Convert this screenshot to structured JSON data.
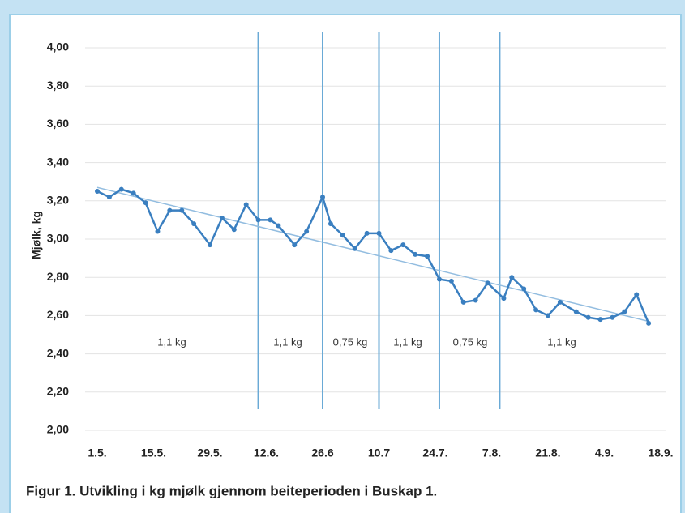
{
  "chart_data": {
    "type": "line",
    "y_label": "Mjølk, kg",
    "caption": "Figur 1. Utvikling i kg mjølk gjennom beiteperioden i Buskap 1.",
    "x": [
      0,
      3,
      6,
      9,
      12,
      15,
      18,
      21,
      24,
      28,
      31,
      34,
      37,
      40,
      43,
      45,
      49,
      52,
      56,
      58,
      61,
      64,
      67,
      70,
      73,
      76,
      79,
      82,
      85,
      88,
      91,
      94,
      97,
      101,
      103,
      106,
      109,
      112,
      115,
      119,
      122,
      125,
      128,
      131,
      134,
      137
    ],
    "series": [
      {
        "color": "#3a7fc0",
        "values": [
          3.25,
          3.22,
          3.26,
          3.24,
          3.19,
          3.04,
          3.15,
          3.15,
          3.08,
          2.97,
          3.11,
          3.05,
          3.18,
          3.1,
          3.1,
          3.07,
          2.97,
          3.04,
          3.22,
          3.08,
          3.02,
          2.95,
          3.03,
          3.03,
          2.94,
          2.97,
          2.92,
          2.91,
          2.79,
          2.78,
          2.67,
          2.68,
          2.77,
          2.69,
          2.8,
          2.74,
          2.63,
          2.6,
          2.67,
          2.62,
          2.59,
          2.58,
          2.59,
          2.62,
          2.71,
          2.56
        ]
      }
    ],
    "trendline": {
      "color": "#93bde0",
      "x": [
        0,
        137
      ],
      "values": [
        3.27,
        2.57
      ]
    },
    "dividers": {
      "color": "#6aaad6",
      "x": [
        40,
        56,
        70,
        85,
        100
      ]
    },
    "annotations": [
      "1,1 kg",
      "1,1 kg",
      "0,75 kg",
      "1,1 kg",
      "0,75 kg",
      "1,1 kg"
    ],
    "xlim": [
      0,
      140
    ],
    "xticks": [
      {
        "value": 0,
        "label": "1.5."
      },
      {
        "value": 14,
        "label": "15.5."
      },
      {
        "value": 28,
        "label": "29.5."
      },
      {
        "value": 42,
        "label": "12.6."
      },
      {
        "value": 56,
        "label": "26.6"
      },
      {
        "value": 70,
        "label": "10.7"
      },
      {
        "value": 84,
        "label": "24.7."
      },
      {
        "value": 98,
        "label": "7.8."
      },
      {
        "value": 112,
        "label": "21.8."
      },
      {
        "value": 126,
        "label": "4.9."
      },
      {
        "value": 140,
        "label": "18.9."
      }
    ],
    "ylim": [
      2,
      4
    ],
    "yticks": [
      {
        "value": 2,
        "label": "2,00"
      },
      {
        "value": 2.2,
        "label": "2,20"
      },
      {
        "value": 2.4,
        "label": "2,40"
      },
      {
        "value": 2.6,
        "label": "2,60"
      },
      {
        "value": 2.8,
        "label": "2,80"
      },
      {
        "value": 3,
        "label": "3,00"
      },
      {
        "value": 3.2,
        "label": "3,20"
      },
      {
        "value": 3.4,
        "label": "3,40"
      },
      {
        "value": 3.6,
        "label": "3,60"
      },
      {
        "value": 3.8,
        "label": "3,80"
      },
      {
        "value": 4,
        "label": "4,00"
      }
    ],
    "grid": true
  }
}
